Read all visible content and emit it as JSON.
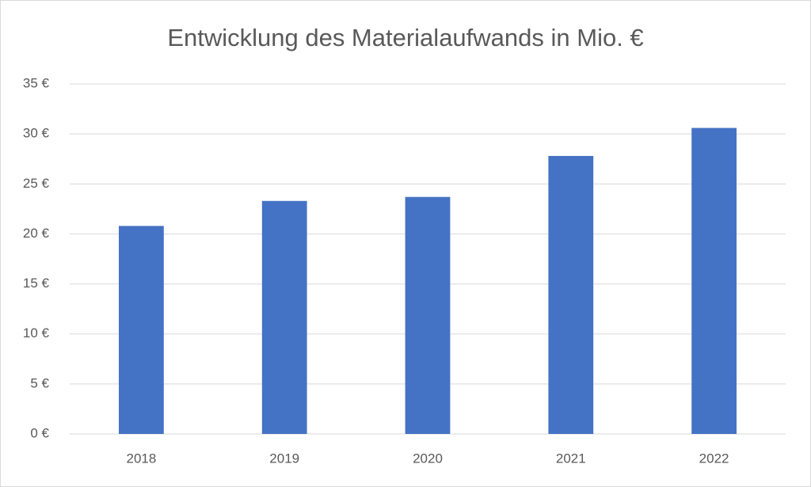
{
  "chart_data": {
    "type": "bar",
    "title": "Entwicklung des Materialaufwands in Mio. €",
    "categories": [
      "2018",
      "2019",
      "2020",
      "2021",
      "2022"
    ],
    "values": [
      20.8,
      23.3,
      23.7,
      27.8,
      30.6
    ],
    "color": "#4472c4",
    "ylim": [
      0,
      35
    ],
    "yticks": [
      {
        "value": 0,
        "label": "0 €"
      },
      {
        "value": 5,
        "label": "5 €"
      },
      {
        "value": 10,
        "label": "10 €"
      },
      {
        "value": 15,
        "label": "15 €"
      },
      {
        "value": 20,
        "label": "20 €"
      },
      {
        "value": 25,
        "label": "25 €"
      },
      {
        "value": 30,
        "label": "30 €"
      },
      {
        "value": 35,
        "label": "35 €"
      }
    ],
    "grid": true
  }
}
